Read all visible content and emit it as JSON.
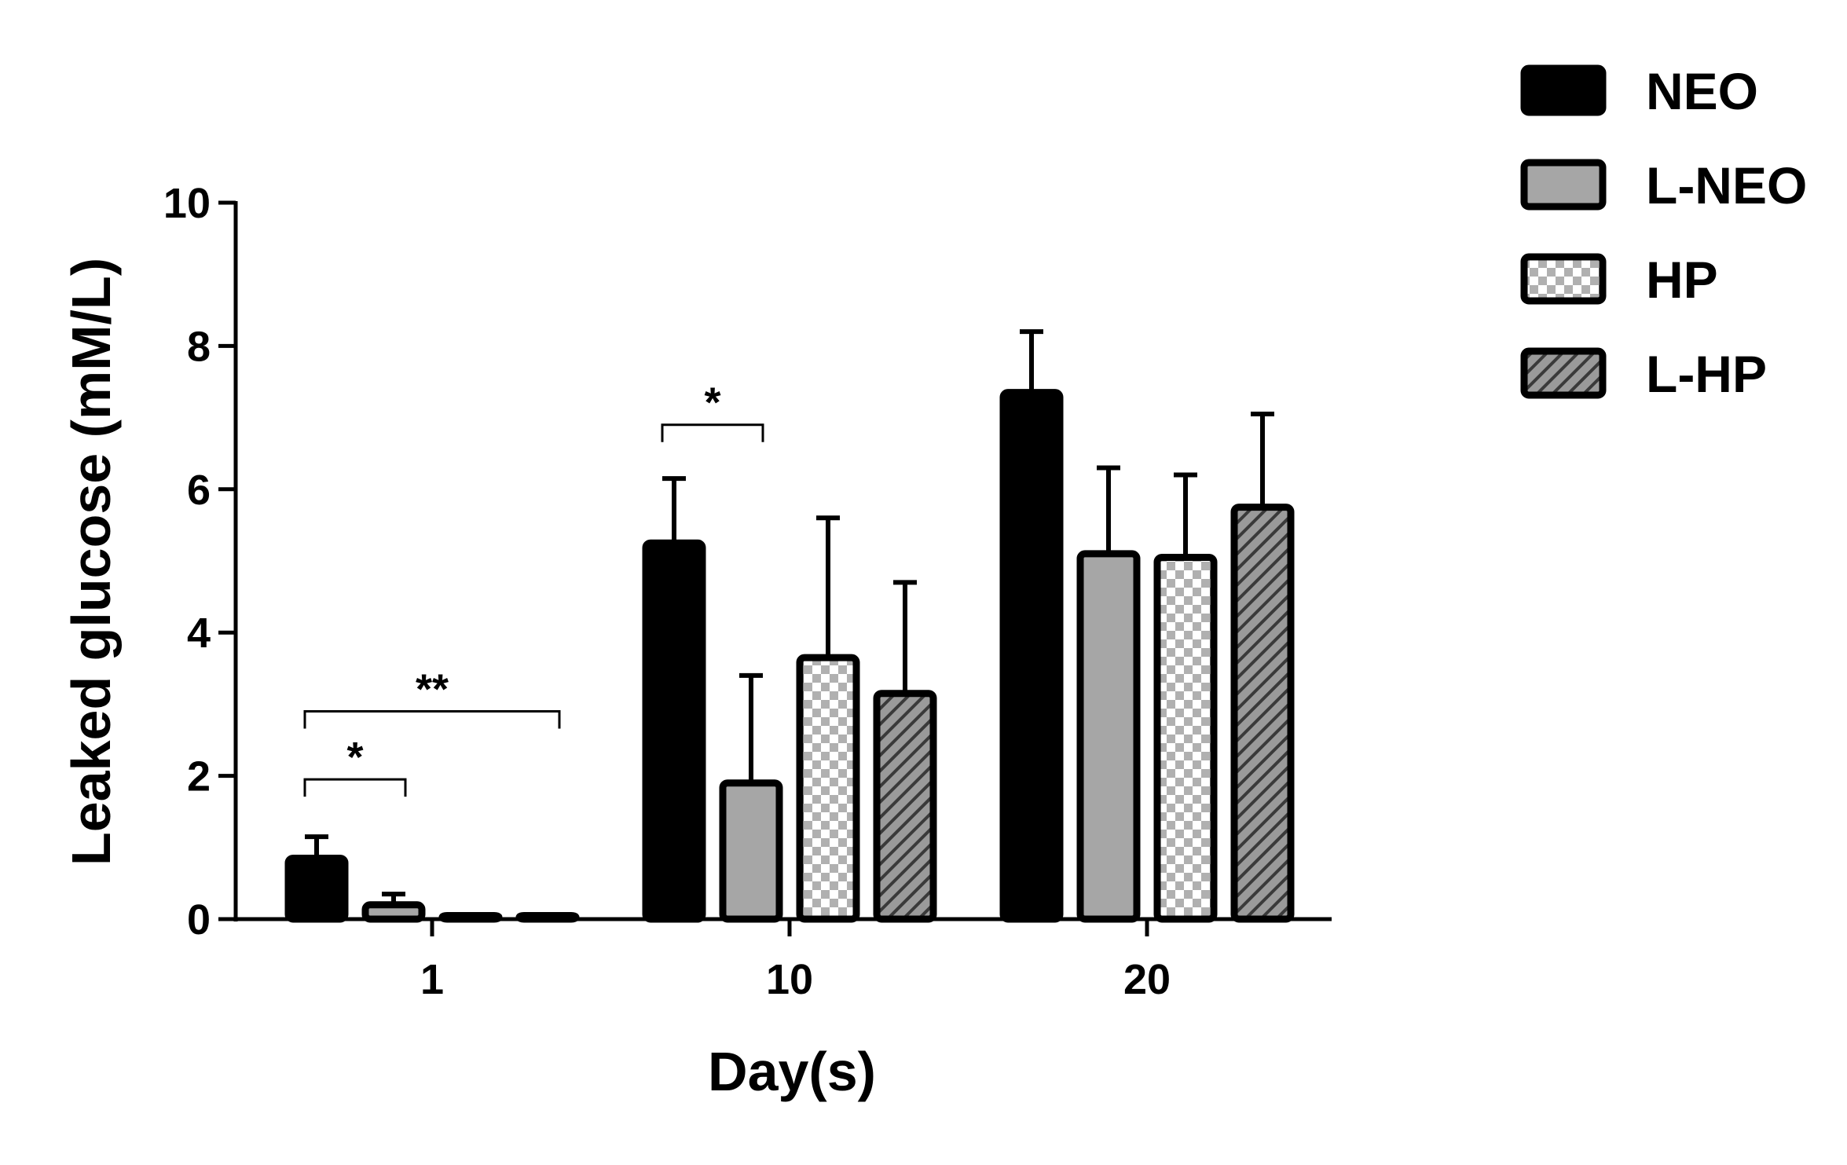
{
  "chart_data": {
    "type": "bar",
    "title": "",
    "xlabel": "Day(s)",
    "ylabel": "Leaked glucose (mM/L)",
    "ylim": [
      0,
      10
    ],
    "yticks": [
      "0",
      "2",
      "4",
      "6",
      "8",
      "10"
    ],
    "categories": [
      "1",
      "10",
      "20"
    ],
    "legend_position": "top-right",
    "series": [
      {
        "name": "NEO",
        "pattern": "solid",
        "color": "#000000",
        "values": [
          0.85,
          5.25,
          7.35
        ],
        "errors": [
          0.3,
          0.9,
          0.85
        ]
      },
      {
        "name": "L-NEO",
        "pattern": "solid",
        "color": "#a6a6a6",
        "values": [
          0.2,
          1.9,
          5.1
        ],
        "errors": [
          0.15,
          1.5,
          1.2
        ]
      },
      {
        "name": "HP",
        "pattern": "checker",
        "color": "#b0b0b0",
        "values": [
          0.05,
          3.65,
          5.05
        ],
        "errors": [
          0.0,
          1.95,
          1.15
        ]
      },
      {
        "name": "L-HP",
        "pattern": "hatch",
        "color": "#8c8c8c",
        "values": [
          0.05,
          3.15,
          5.75
        ],
        "errors": [
          0.0,
          1.55,
          1.3
        ]
      }
    ],
    "significance": [
      {
        "category": "1",
        "from_series": "NEO",
        "to_series": "L-NEO",
        "label": "*",
        "y": 1.95
      },
      {
        "category": "1",
        "from_series": "NEO",
        "to_series": "L-HP",
        "label": "**",
        "y": 2.9
      },
      {
        "category": "10",
        "from_series": "NEO",
        "to_series": "L-NEO",
        "label": "*",
        "y": 6.9
      }
    ]
  }
}
